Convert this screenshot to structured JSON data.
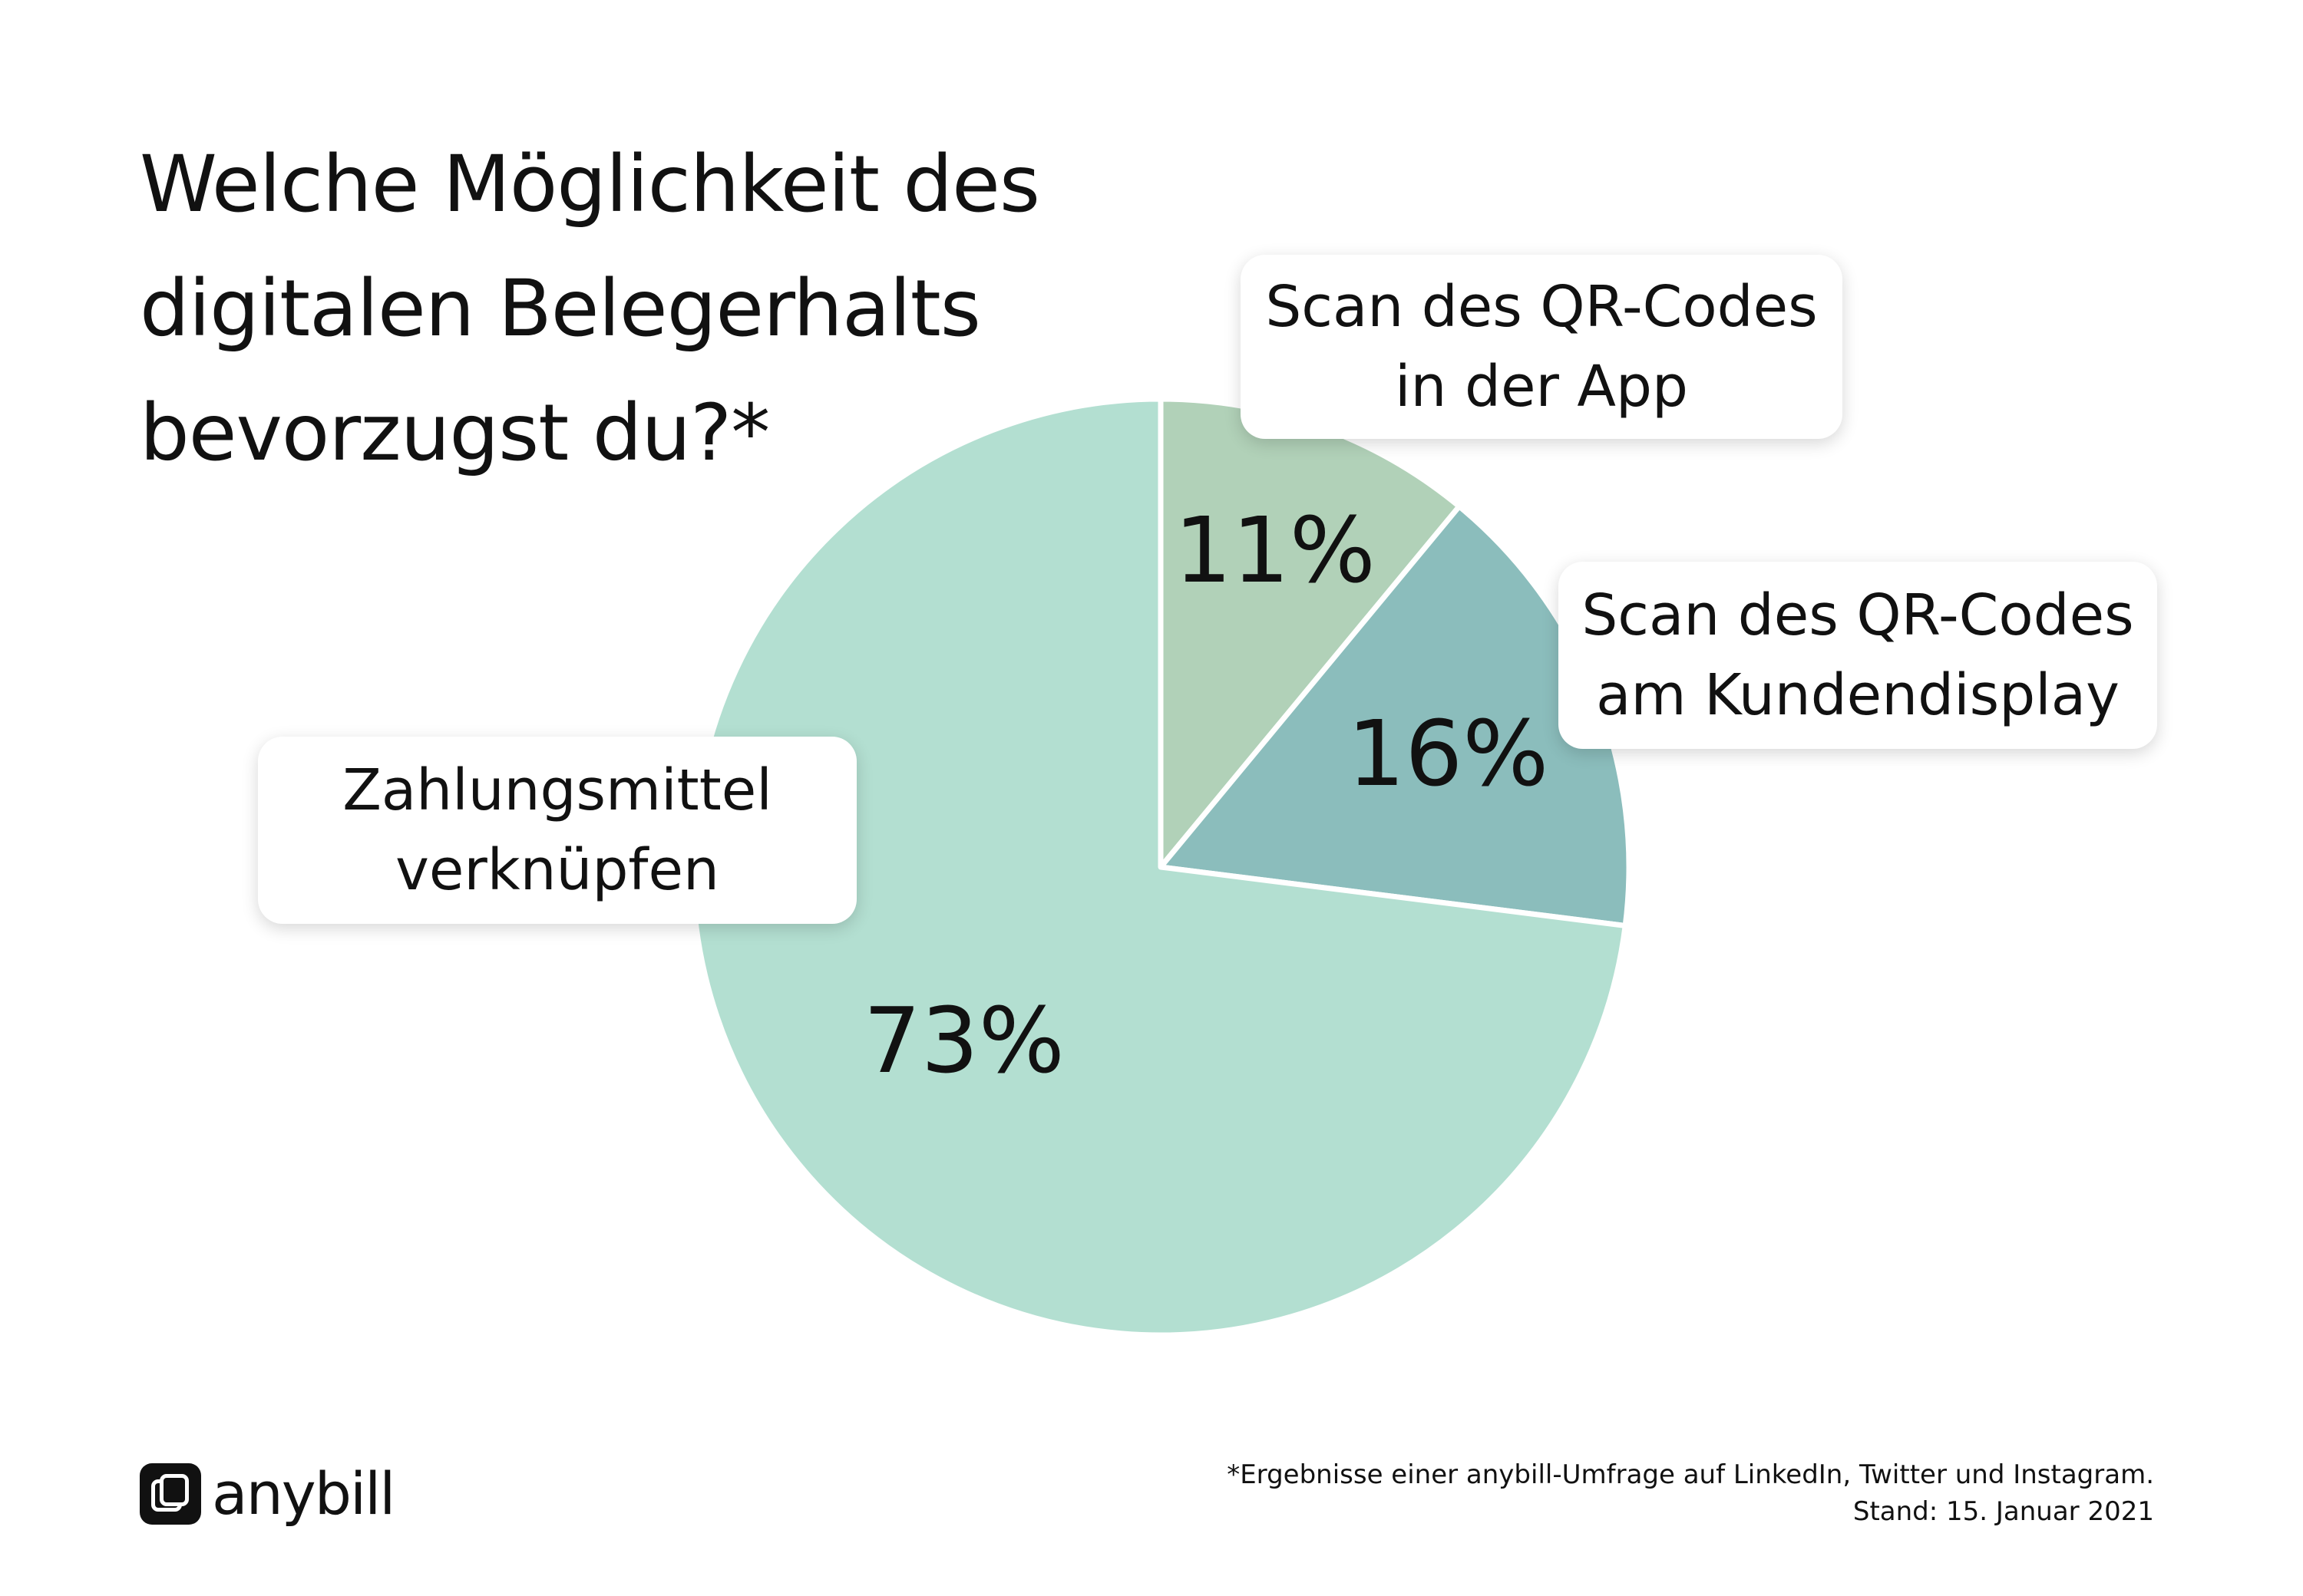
{
  "chart_data": {
    "type": "pie",
    "title": "Welche Möglichkeit des digitalen Belegerhalts bevorzugst du?*",
    "title_lines": [
      "Welche Möglichkeit des",
      "digitalen Belegerhalts",
      "bevorzugst du?*"
    ],
    "start_angle_deg": 0,
    "direction": "clockwise",
    "slices": [
      {
        "id": "qr-app",
        "label": "Scan des QR-Codes in der App",
        "label_lines": [
          "Scan des QR-Codes",
          "in der App"
        ],
        "value": 11,
        "value_label": "11%",
        "color": "#b1d1b8"
      },
      {
        "id": "qr-display",
        "label": "Scan des QR-Codes am Kundendisplay",
        "label_lines": [
          "Scan des QR-Codes",
          "am Kundendisplay"
        ],
        "value": 16,
        "value_label": "16%",
        "color": "#8bbdbc"
      },
      {
        "id": "payment",
        "label": "Zahlungsmittel verknüpfen",
        "label_lines": [
          "Zahlungsmittel",
          "verknüpfen"
        ],
        "value": 73,
        "value_label": "73%",
        "color": "#b3dfd1"
      }
    ]
  },
  "brand": {
    "name": "anybill"
  },
  "footnote": {
    "line1": "*Ergebnisse einer anybill-Umfrage auf LinkedIn, Twitter und Instagram.",
    "line2": "Stand: 15. Januar 2021"
  }
}
